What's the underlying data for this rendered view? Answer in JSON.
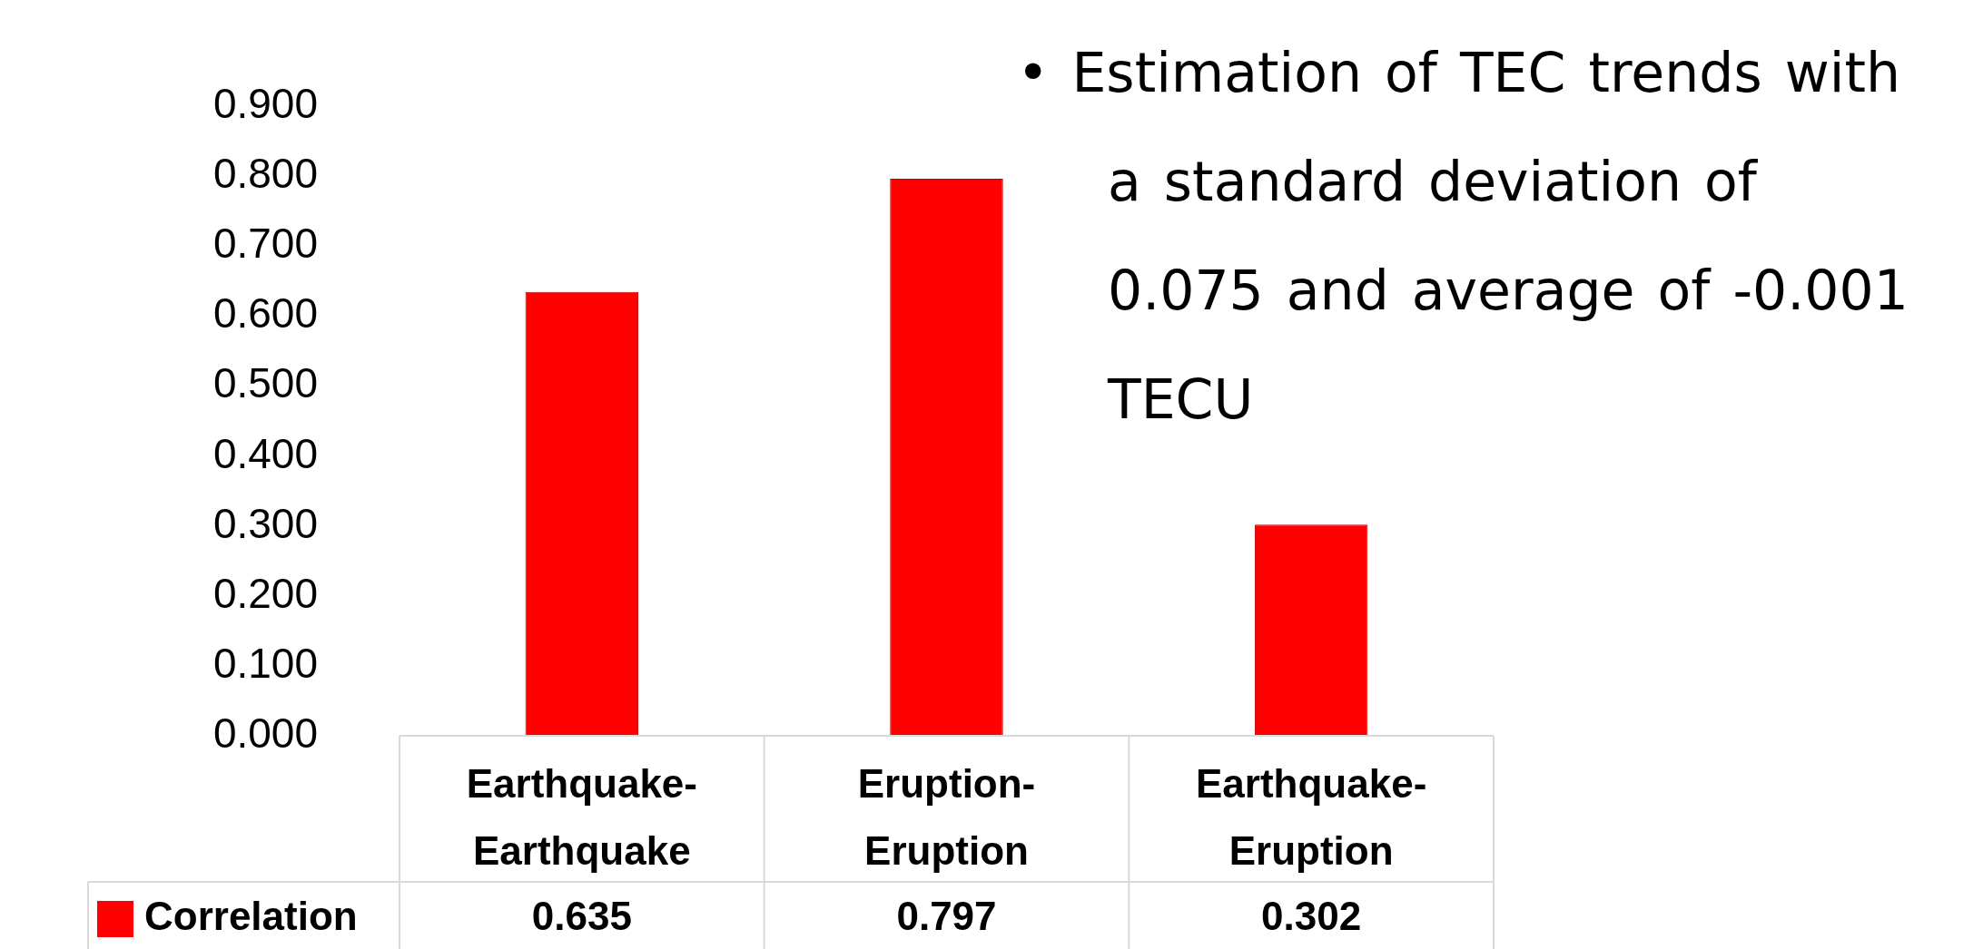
{
  "chart_data": {
    "type": "bar",
    "categories": [
      "Earthquake-Earthquake",
      "Eruption-Eruption",
      "Earthquake-Eruption"
    ],
    "series": [
      {
        "name": "Correlation",
        "color": "#ff0000",
        "values": [
          0.635,
          0.797,
          0.302
        ]
      }
    ],
    "ylim": [
      0,
      0.9
    ],
    "yticks": [
      {
        "value": 0,
        "label": "0.000"
      },
      {
        "value": 0.1,
        "label": "0.100"
      },
      {
        "value": 0.2,
        "label": "0.200"
      },
      {
        "value": 0.3,
        "label": "0.300"
      },
      {
        "value": 0.4,
        "label": "0.400"
      },
      {
        "value": 0.5,
        "label": "0.500"
      },
      {
        "value": 0.6,
        "label": "0.600"
      },
      {
        "value": 0.7,
        "label": "0.700"
      },
      {
        "value": 0.8,
        "label": "0.800"
      },
      {
        "value": 0.9,
        "label": "0.900"
      }
    ],
    "grid": false,
    "legend": "bottom left",
    "data_labels": true,
    "annotations": [
      "• Estimation of TEC trends with a standard deviation of 0.075 and average of -0.001 TECU"
    ]
  }
}
